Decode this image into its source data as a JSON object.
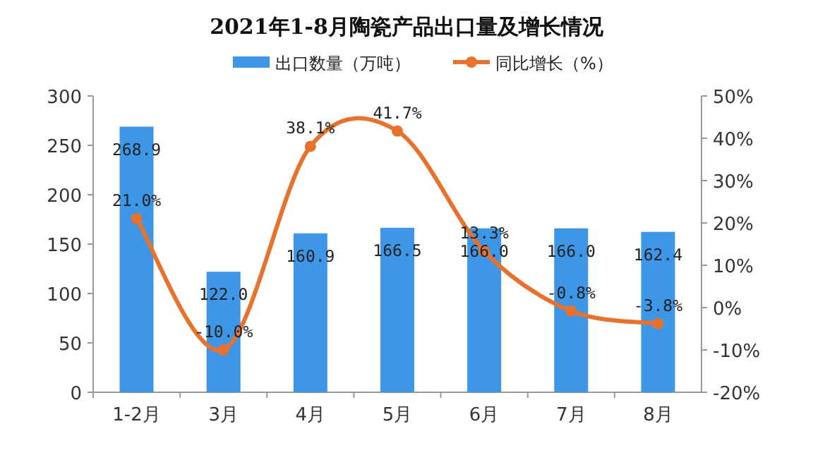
{
  "chart_data": {
    "type": "bar",
    "title": "2021年1-8月陶瓷产品出口量及增长情况",
    "categories": [
      "1-2月",
      "3月",
      "4月",
      "5月",
      "6月",
      "7月",
      "8月"
    ],
    "series": [
      {
        "name": "出口数量（万吨）",
        "color": "#3e96e6",
        "values": [
          268.9,
          122.0,
          160.9,
          166.5,
          166.0,
          166.0,
          162.4
        ],
        "value_labels": [
          "268.9",
          "122.0",
          "160.9",
          "166.5",
          "166.0",
          "166.0",
          "162.4"
        ]
      },
      {
        "name": "同比增长（%）",
        "type": "line",
        "axis": "y2",
        "color": "#e8712d",
        "marker": "circle",
        "values": [
          21.0,
          -10.0,
          38.1,
          41.7,
          13.3,
          -0.8,
          -3.8
        ],
        "value_labels": [
          "21.0%",
          "-10.0%",
          "38.1%",
          "41.7%",
          "13.3%",
          "-0.8%",
          "-3.8%"
        ]
      }
    ],
    "ylim": [
      0,
      300
    ],
    "yticks": [
      0,
      50,
      100,
      150,
      200,
      250,
      300
    ],
    "y2lim": [
      -20,
      50
    ],
    "y2ticks": [
      {
        "value": -20,
        "label": "-20%"
      },
      {
        "value": -10,
        "label": "-10%"
      },
      {
        "value": 0,
        "label": "0%"
      },
      {
        "value": 10,
        "label": "10%"
      },
      {
        "value": 20,
        "label": "20%"
      },
      {
        "value": 30,
        "label": "30%"
      },
      {
        "value": 40,
        "label": "40%"
      },
      {
        "value": 50,
        "label": "50%"
      }
    ],
    "legend": "top"
  }
}
